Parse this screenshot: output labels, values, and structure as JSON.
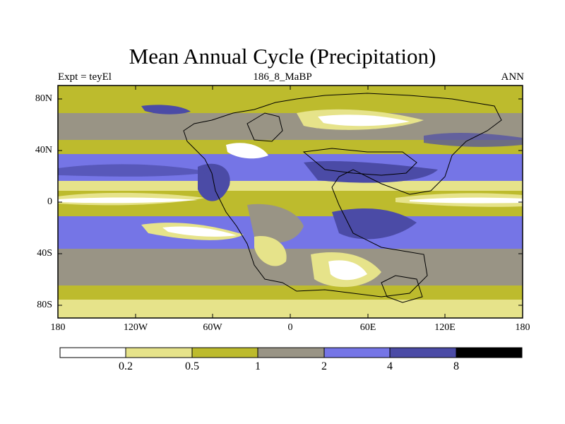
{
  "title": "Mean Annual Cycle (Precipitation)",
  "subtitle_left": "Expt = teyEl",
  "subtitle_center": "186_8_MaBP",
  "subtitle_right": "ANN",
  "lat_labels": [
    "80N",
    "40N",
    "0",
    "40S",
    "80S"
  ],
  "lon_labels": [
    "180",
    "120W",
    "60W",
    "0",
    "60E",
    "120E",
    "180"
  ],
  "colorbar": {
    "boundaries": [
      "0.2",
      "0.5",
      "1",
      "2",
      "4",
      "8"
    ],
    "colors": [
      "#ffffff",
      "#e6e38a",
      "#bdbb2d",
      "#999485",
      "#7575e6",
      "#4b4ba6",
      "#000000"
    ]
  }
}
